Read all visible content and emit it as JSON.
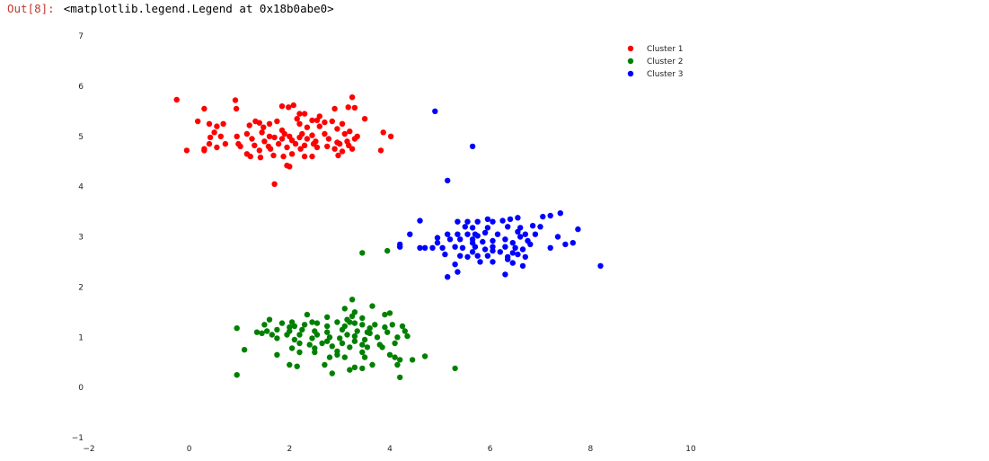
{
  "output": {
    "prompt": "Out[8]:",
    "text": "<matplotlib.legend.Legend at 0x18b0abe0>"
  },
  "chart_data": {
    "type": "scatter",
    "title": "",
    "xlabel": "",
    "ylabel": "",
    "xlim": [
      -2,
      10
    ],
    "ylim": [
      -1,
      7
    ],
    "x_ticks": [
      "−2",
      "0",
      "2",
      "4",
      "6",
      "8",
      "10"
    ],
    "y_ticks": [
      "−1",
      "0",
      "1",
      "2",
      "3",
      "4",
      "5",
      "6",
      "7"
    ],
    "grid": false,
    "legend_position": "top-right",
    "series": [
      {
        "name": "Cluster 1",
        "color": "#ff0000",
        "points": [
          [
            -0.25,
            5.73
          ],
          [
            0.92,
            5.72
          ],
          [
            3.25,
            5.78
          ],
          [
            0.3,
            5.55
          ],
          [
            0.94,
            5.55
          ],
          [
            1.85,
            5.6
          ],
          [
            1.98,
            5.58
          ],
          [
            2.08,
            5.62
          ],
          [
            3.17,
            5.58
          ],
          [
            3.3,
            5.57
          ],
          [
            2.9,
            5.55
          ],
          [
            2.2,
            5.45
          ],
          [
            2.3,
            5.45
          ],
          [
            2.6,
            5.4
          ],
          [
            3.5,
            5.35
          ],
          [
            0.17,
            5.3
          ],
          [
            1.32,
            5.3
          ],
          [
            1.4,
            5.27
          ],
          [
            1.2,
            5.22
          ],
          [
            1.6,
            5.25
          ],
          [
            1.75,
            5.3
          ],
          [
            2.15,
            5.35
          ],
          [
            2.2,
            5.25
          ],
          [
            2.45,
            5.32
          ],
          [
            2.55,
            5.32
          ],
          [
            2.7,
            5.28
          ],
          [
            2.85,
            5.3
          ],
          [
            3.05,
            5.25
          ],
          [
            0.4,
            5.25
          ],
          [
            0.55,
            5.2
          ],
          [
            0.68,
            5.25
          ],
          [
            1.48,
            5.18
          ],
          [
            1.85,
            5.12
          ],
          [
            2.35,
            5.18
          ],
          [
            2.6,
            5.2
          ],
          [
            2.95,
            5.15
          ],
          [
            3.2,
            5.1
          ],
          [
            0.5,
            5.08
          ],
          [
            1.15,
            5.05
          ],
          [
            1.45,
            5.08
          ],
          [
            1.6,
            5.0
          ],
          [
            1.9,
            5.05
          ],
          [
            2.0,
            5.0
          ],
          [
            2.25,
            5.05
          ],
          [
            2.45,
            5.02
          ],
          [
            2.7,
            5.05
          ],
          [
            3.1,
            5.05
          ],
          [
            3.3,
            4.95
          ],
          [
            3.35,
            5.0
          ],
          [
            3.87,
            5.08
          ],
          [
            4.02,
            5.0
          ],
          [
            0.42,
            4.98
          ],
          [
            0.63,
            5.0
          ],
          [
            0.95,
            5.0
          ],
          [
            1.25,
            4.95
          ],
          [
            1.5,
            4.9
          ],
          [
            1.7,
            4.98
          ],
          [
            1.85,
            4.95
          ],
          [
            2.05,
            4.92
          ],
          [
            2.2,
            4.98
          ],
          [
            2.35,
            4.95
          ],
          [
            2.52,
            4.9
          ],
          [
            2.78,
            4.95
          ],
          [
            2.95,
            4.88
          ],
          [
            3.15,
            4.9
          ],
          [
            0.4,
            4.85
          ],
          [
            0.72,
            4.85
          ],
          [
            0.98,
            4.85
          ],
          [
            1.3,
            4.82
          ],
          [
            1.58,
            4.8
          ],
          [
            1.78,
            4.85
          ],
          [
            2.12,
            4.85
          ],
          [
            2.3,
            4.82
          ],
          [
            2.48,
            4.85
          ],
          [
            2.75,
            4.8
          ],
          [
            3.0,
            4.85
          ],
          [
            3.18,
            4.82
          ],
          [
            0.3,
            4.75
          ],
          [
            0.55,
            4.78
          ],
          [
            1.02,
            4.8
          ],
          [
            1.4,
            4.72
          ],
          [
            1.62,
            4.75
          ],
          [
            1.95,
            4.78
          ],
          [
            2.22,
            4.75
          ],
          [
            2.55,
            4.78
          ],
          [
            2.9,
            4.75
          ],
          [
            3.05,
            4.7
          ],
          [
            3.25,
            4.75
          ],
          [
            -0.05,
            4.72
          ],
          [
            0.3,
            4.72
          ],
          [
            1.15,
            4.65
          ],
          [
            1.22,
            4.6
          ],
          [
            1.42,
            4.58
          ],
          [
            1.68,
            4.62
          ],
          [
            1.88,
            4.6
          ],
          [
            2.05,
            4.65
          ],
          [
            2.3,
            4.6
          ],
          [
            2.45,
            4.6
          ],
          [
            2.97,
            4.62
          ],
          [
            3.82,
            4.72
          ],
          [
            1.95,
            4.42
          ],
          [
            2.0,
            4.4
          ],
          [
            1.7,
            4.05
          ]
        ]
      },
      {
        "name": "Cluster 2",
        "color": "#008000",
        "points": [
          [
            3.25,
            1.75
          ],
          [
            3.65,
            1.62
          ],
          [
            3.1,
            1.57
          ],
          [
            3.3,
            1.5
          ],
          [
            2.35,
            1.45
          ],
          [
            3.25,
            1.42
          ],
          [
            3.9,
            1.45
          ],
          [
            4.0,
            1.48
          ],
          [
            2.75,
            1.4
          ],
          [
            3.15,
            1.35
          ],
          [
            3.45,
            1.38
          ],
          [
            1.6,
            1.35
          ],
          [
            2.05,
            1.3
          ],
          [
            2.45,
            1.3
          ],
          [
            2.95,
            1.3
          ],
          [
            3.2,
            1.3
          ],
          [
            3.3,
            1.28
          ],
          [
            1.5,
            1.25
          ],
          [
            1.85,
            1.28
          ],
          [
            2.1,
            1.22
          ],
          [
            2.3,
            1.25
          ],
          [
            2.55,
            1.28
          ],
          [
            2.75,
            1.22
          ],
          [
            3.1,
            1.22
          ],
          [
            3.45,
            1.25
          ],
          [
            3.7,
            1.25
          ],
          [
            4.05,
            1.25
          ],
          [
            4.25,
            1.22
          ],
          [
            0.95,
            1.18
          ],
          [
            2.0,
            1.2
          ],
          [
            3.9,
            1.2
          ],
          [
            3.6,
            1.18
          ],
          [
            1.35,
            1.1
          ],
          [
            1.55,
            1.12
          ],
          [
            1.75,
            1.15
          ],
          [
            2.0,
            1.12
          ],
          [
            2.25,
            1.15
          ],
          [
            2.5,
            1.12
          ],
          [
            2.75,
            1.1
          ],
          [
            3.05,
            1.15
          ],
          [
            3.35,
            1.12
          ],
          [
            3.55,
            1.1
          ],
          [
            3.95,
            1.1
          ],
          [
            4.3,
            1.12
          ],
          [
            1.45,
            1.08
          ],
          [
            1.65,
            1.05
          ],
          [
            1.95,
            1.05
          ],
          [
            2.2,
            1.05
          ],
          [
            2.55,
            1.05
          ],
          [
            2.8,
            1.0
          ],
          [
            3.15,
            1.05
          ],
          [
            3.3,
            1.02
          ],
          [
            3.6,
            1.08
          ],
          [
            4.15,
            1.0
          ],
          [
            4.35,
            1.02
          ],
          [
            1.75,
            0.98
          ],
          [
            2.1,
            0.95
          ],
          [
            2.45,
            0.98
          ],
          [
            2.75,
            0.92
          ],
          [
            3.0,
            0.98
          ],
          [
            3.3,
            0.92
          ],
          [
            3.5,
            0.95
          ],
          [
            3.75,
            1.0
          ],
          [
            2.2,
            0.88
          ],
          [
            2.4,
            0.85
          ],
          [
            2.65,
            0.88
          ],
          [
            3.05,
            0.88
          ],
          [
            3.45,
            0.85
          ],
          [
            3.8,
            0.85
          ],
          [
            4.1,
            0.88
          ],
          [
            2.85,
            0.82
          ],
          [
            3.2,
            0.8
          ],
          [
            3.55,
            0.8
          ],
          [
            3.85,
            0.8
          ],
          [
            2.05,
            0.78
          ],
          [
            2.5,
            0.78
          ],
          [
            1.1,
            0.75
          ],
          [
            2.2,
            0.7
          ],
          [
            2.5,
            0.7
          ],
          [
            2.95,
            0.72
          ],
          [
            3.45,
            0.7
          ],
          [
            2.95,
            0.65
          ],
          [
            4.0,
            0.65
          ],
          [
            4.1,
            0.6
          ],
          [
            1.75,
            0.65
          ],
          [
            3.1,
            0.6
          ],
          [
            2.8,
            0.6
          ],
          [
            3.5,
            0.6
          ],
          [
            4.2,
            0.55
          ],
          [
            4.45,
            0.55
          ],
          [
            4.7,
            0.62
          ],
          [
            2.0,
            0.45
          ],
          [
            3.65,
            0.45
          ],
          [
            4.15,
            0.45
          ],
          [
            3.3,
            0.4
          ],
          [
            2.15,
            0.42
          ],
          [
            3.45,
            0.38
          ],
          [
            2.7,
            0.45
          ],
          [
            3.2,
            0.35
          ],
          [
            2.85,
            0.28
          ],
          [
            5.3,
            0.38
          ],
          [
            0.95,
            0.25
          ],
          [
            4.2,
            0.2
          ],
          [
            3.45,
            2.68
          ],
          [
            3.95,
            2.72
          ]
        ]
      },
      {
        "name": "Cluster 3",
        "color": "#0000ff",
        "points": [
          [
            4.9,
            5.5
          ],
          [
            5.65,
            4.8
          ],
          [
            5.15,
            4.12
          ],
          [
            7.4,
            3.47
          ],
          [
            7.2,
            3.42
          ],
          [
            7.05,
            3.4
          ],
          [
            5.35,
            3.3
          ],
          [
            4.6,
            3.32
          ],
          [
            5.95,
            3.35
          ],
          [
            6.25,
            3.32
          ],
          [
            6.4,
            3.35
          ],
          [
            6.55,
            3.38
          ],
          [
            5.55,
            3.3
          ],
          [
            5.75,
            3.3
          ],
          [
            6.05,
            3.3
          ],
          [
            5.5,
            3.2
          ],
          [
            5.65,
            3.18
          ],
          [
            5.95,
            3.18
          ],
          [
            6.35,
            3.2
          ],
          [
            6.6,
            3.18
          ],
          [
            6.85,
            3.22
          ],
          [
            7.0,
            3.2
          ],
          [
            7.75,
            3.15
          ],
          [
            4.4,
            3.05
          ],
          [
            5.15,
            3.05
          ],
          [
            5.35,
            3.05
          ],
          [
            5.55,
            3.05
          ],
          [
            5.7,
            3.05
          ],
          [
            5.9,
            3.08
          ],
          [
            6.15,
            3.05
          ],
          [
            6.55,
            3.1
          ],
          [
            6.7,
            3.05
          ],
          [
            6.9,
            3.05
          ],
          [
            7.35,
            3.0
          ],
          [
            4.95,
            2.98
          ],
          [
            5.2,
            2.95
          ],
          [
            5.4,
            2.95
          ],
          [
            5.65,
            2.95
          ],
          [
            5.75,
            3.02
          ],
          [
            5.85,
            2.9
          ],
          [
            6.05,
            2.92
          ],
          [
            6.3,
            2.95
          ],
          [
            6.6,
            3.0
          ],
          [
            6.75,
            2.92
          ],
          [
            4.2,
            2.85
          ],
          [
            4.95,
            2.88
          ],
          [
            5.65,
            2.88
          ],
          [
            6.45,
            2.88
          ],
          [
            6.8,
            2.85
          ],
          [
            7.5,
            2.85
          ],
          [
            7.65,
            2.88
          ],
          [
            4.2,
            2.8
          ],
          [
            4.6,
            2.78
          ],
          [
            4.7,
            2.78
          ],
          [
            4.85,
            2.78
          ],
          [
            5.05,
            2.78
          ],
          [
            5.3,
            2.8
          ],
          [
            5.45,
            2.78
          ],
          [
            5.7,
            2.8
          ],
          [
            5.9,
            2.75
          ],
          [
            6.05,
            2.8
          ],
          [
            6.3,
            2.8
          ],
          [
            6.5,
            2.78
          ],
          [
            6.65,
            2.75
          ],
          [
            7.2,
            2.78
          ],
          [
            5.65,
            2.7
          ],
          [
            6.05,
            2.72
          ],
          [
            6.2,
            2.7
          ],
          [
            6.45,
            2.68
          ],
          [
            5.1,
            2.65
          ],
          [
            5.4,
            2.62
          ],
          [
            5.75,
            2.62
          ],
          [
            5.95,
            2.62
          ],
          [
            6.35,
            2.6
          ],
          [
            6.55,
            2.65
          ],
          [
            5.55,
            2.6
          ],
          [
            6.7,
            2.6
          ],
          [
            6.35,
            2.55
          ],
          [
            5.8,
            2.5
          ],
          [
            6.05,
            2.5
          ],
          [
            6.45,
            2.48
          ],
          [
            6.65,
            2.42
          ],
          [
            5.3,
            2.45
          ],
          [
            5.35,
            2.3
          ],
          [
            8.2,
            2.42
          ],
          [
            6.3,
            2.25
          ],
          [
            5.15,
            2.2
          ]
        ]
      }
    ]
  }
}
